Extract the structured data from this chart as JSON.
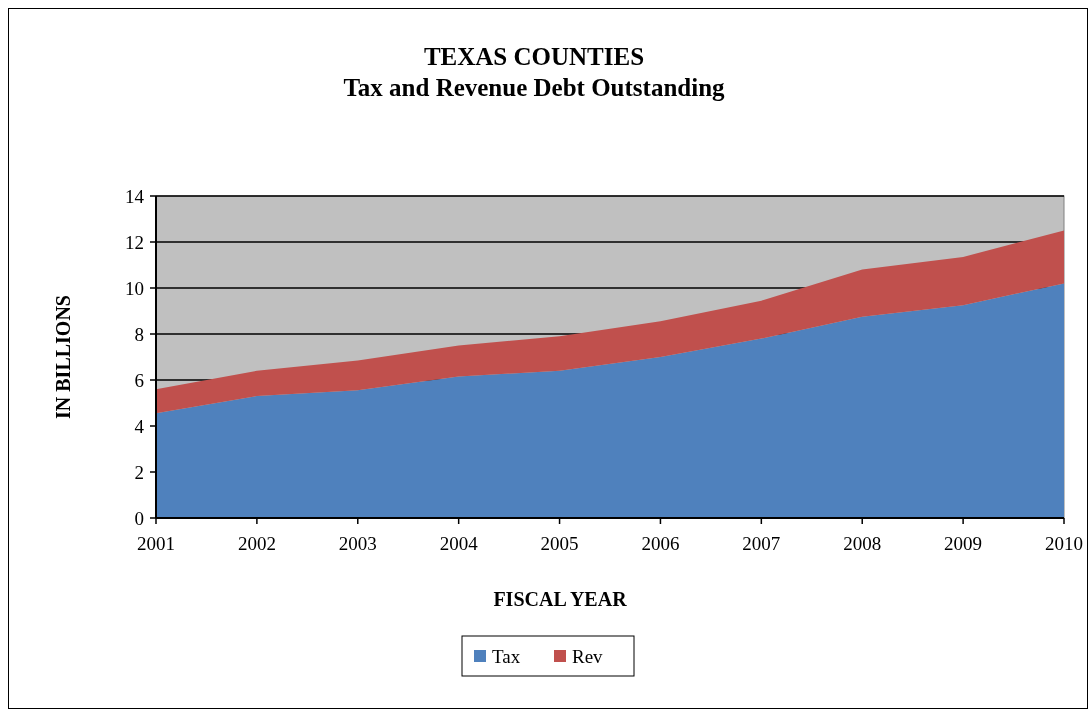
{
  "chart_data": {
    "type": "area",
    "stacked": true,
    "title": "TEXAS COUNTIES",
    "subtitle": "Tax and Revenue Debt Outstanding",
    "xlabel": "FISCAL YEAR",
    "ylabel": "IN BILLIONS",
    "x": [
      2001,
      2002,
      2003,
      2004,
      2005,
      2006,
      2007,
      2008,
      2009,
      2010
    ],
    "xlim": [
      2001,
      2010
    ],
    "xticks": [
      2001,
      2002,
      2003,
      2004,
      2005,
      2006,
      2007,
      2008,
      2009,
      2010
    ],
    "ylim": [
      0,
      14
    ],
    "yticks": [
      0,
      2,
      4,
      6,
      8,
      10,
      12,
      14
    ],
    "grid": "y",
    "legend": "bottom",
    "series": [
      {
        "name": "Tax",
        "color": "#4f81bd",
        "values": [
          4.55,
          5.3,
          5.55,
          6.15,
          6.4,
          7.0,
          7.8,
          8.75,
          9.25,
          10.2
        ]
      },
      {
        "name": "Rev",
        "color": "#c0504d",
        "values": [
          1.05,
          1.1,
          1.3,
          1.35,
          1.5,
          1.55,
          1.65,
          2.05,
          2.1,
          2.3
        ]
      }
    ]
  }
}
